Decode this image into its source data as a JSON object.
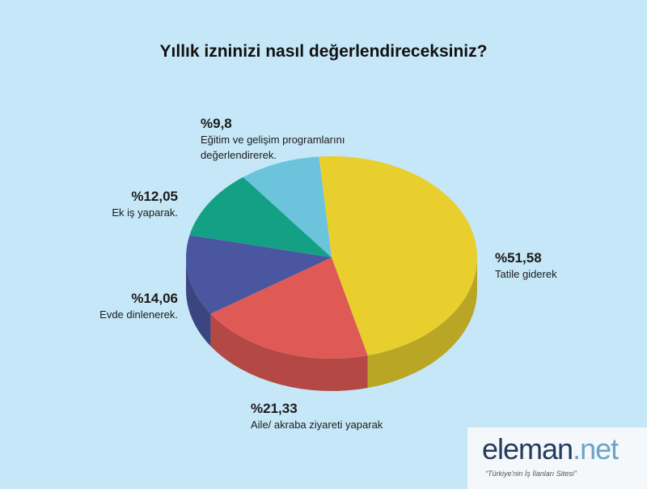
{
  "chart_data": {
    "type": "pie",
    "title": "Yıllık izninizi nasıl değerlendireceksiniz?",
    "categories": [
      "Tatile giderek",
      "Aile/ akraba ziyareti yaparak",
      "Evde dinlenerek.",
      "Ek iş yaparak.",
      "Eğitim ve gelişim programlarını değerlendirerek."
    ],
    "values": [
      51.58,
      21.33,
      14.06,
      12.05,
      9.8
    ],
    "value_labels": [
      "%51,58",
      "%21,33",
      "%14,06",
      "%12,05",
      "%9,8"
    ],
    "colors": [
      "#e8cf2e",
      "#e05a55",
      "#4a56a0",
      "#14a085",
      "#6cc3dc"
    ]
  },
  "logo": {
    "name": [
      "eleman",
      ".net"
    ],
    "tagline": "“Türkiye'nin İş İlanları Sitesi”"
  }
}
